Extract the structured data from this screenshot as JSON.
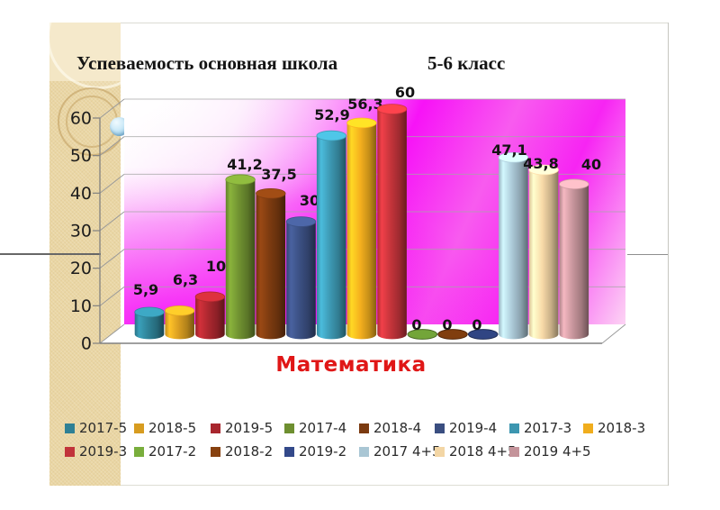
{
  "slide": {
    "title_left": "Успеваемость основная школа",
    "title_right": "5-6 класс",
    "xaxis_label": "Математика"
  },
  "colors": {
    "wall_magenta": "#F60AF6",
    "xlabel_red": "#E01717",
    "strip_tan": "#EAD6A4",
    "strip_header": "#F3E6C4",
    "axis_gray": "#808080",
    "gridline_gray": "#A6A6A6"
  },
  "chart_data": {
    "type": "bar",
    "title": "Успеваемость основная школа 5-6 класс",
    "xlabel": "Математика",
    "ylabel": "",
    "ylim": [
      0,
      60
    ],
    "yticks": [
      0,
      10,
      20,
      30,
      40,
      50,
      60
    ],
    "grid": true,
    "legend_position": "bottom",
    "categories": [
      "Математика"
    ],
    "series": [
      {
        "name": "2017-5",
        "value": 5.9,
        "label": "5,9",
        "color": "#2E8095"
      },
      {
        "name": "2018-5",
        "value": 6.3,
        "label": "6,3",
        "color": "#D79C20"
      },
      {
        "name": "2019-5",
        "value": 10,
        "label": "10",
        "color": "#A8262E"
      },
      {
        "name": "2017-4",
        "value": 41.2,
        "label": "41,2",
        "color": "#6E8F30"
      },
      {
        "name": "2018-4",
        "value": 37.5,
        "label": "37,5",
        "color": "#7B3A10"
      },
      {
        "name": "2019-4",
        "value": 30,
        "label": "30",
        "color": "#3A4E80"
      },
      {
        "name": "2017-3",
        "value": 52.9,
        "label": "52,9",
        "color": "#3C96B0"
      },
      {
        "name": "2018-3",
        "value": 56.3,
        "label": "56,3",
        "color": "#F0AD1D"
      },
      {
        "name": "2019-3",
        "value": 60,
        "label": "60",
        "color": "#C1333A"
      },
      {
        "name": "2017-2",
        "value": 0,
        "label": "0",
        "color": "#79AE3C"
      },
      {
        "name": "2018-2",
        "value": 0,
        "label": "0",
        "color": "#87410F"
      },
      {
        "name": "2019-2",
        "value": 0,
        "label": "0",
        "color": "#33498A"
      },
      {
        "name": "2017 4+5",
        "value": 47.1,
        "label": "47,1",
        "color": "#A9C6D4"
      },
      {
        "name": "2018 4+5",
        "value": 43.8,
        "label": "43,8",
        "color": "#F3D6A5"
      },
      {
        "name": "2019 4+5",
        "value": 40,
        "label": "40",
        "color": "#C4939A"
      }
    ]
  },
  "legend": {
    "row1": [
      "2017-5",
      "2018-5",
      "2019-5",
      "2017-4",
      "2018-4",
      "2019-4",
      "2017-3",
      "2018-3"
    ],
    "row2": [
      "2019-3",
      "2017-2",
      "2018-2",
      "2019-2",
      "2017 4+5",
      "2018 4+5",
      "2019 4+5"
    ]
  }
}
